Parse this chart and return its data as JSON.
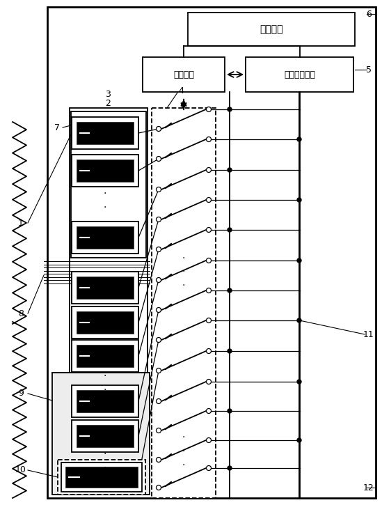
{
  "bg_color": "#ffffff",
  "line_color": "#000000",
  "box_labels": {
    "power": "电源电路",
    "mcu": "微控制器",
    "data_acq": "数据采集电路"
  },
  "ref_labels": [
    "1",
    "2",
    "3",
    "4",
    "5",
    "6",
    "7",
    "8",
    "9",
    "10",
    "11",
    "12"
  ]
}
